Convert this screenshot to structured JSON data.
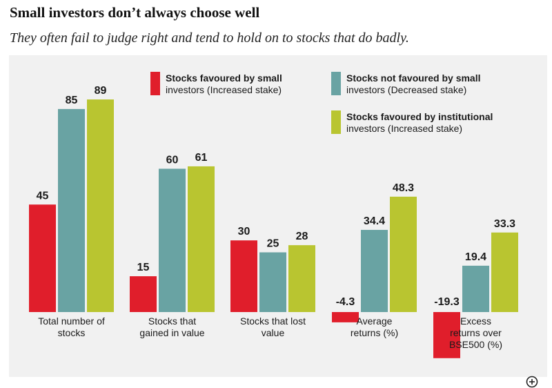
{
  "title": "Small investors don’t always choose well",
  "subtitle": "They often fail to judge right and tend to hold on to stocks that do badly.",
  "colors": {
    "small_investors": "#e01e2b",
    "not_favoured": "#69a3a3",
    "institutional": "#b9c530",
    "background": "#f1f1f1"
  },
  "chart_data": {
    "type": "bar",
    "title": "Small investors don’t always choose well",
    "categories": [
      [
        "Total number of",
        "stocks"
      ],
      [
        "Stocks that",
        "gained in value"
      ],
      [
        "Stocks that lost",
        "value"
      ],
      [
        "Average",
        "returns (%)"
      ],
      [
        "Excess",
        "returns over",
        "BSE500 (%)"
      ]
    ],
    "series": [
      {
        "name": "Stocks favoured by small investors (Increased stake)",
        "legend_lines": [
          "Stocks favoured by small",
          "investors (Increased stake)"
        ],
        "values": [
          45,
          15,
          30,
          -4.3,
          -19.3
        ]
      },
      {
        "name": "Stocks not favoured by small investors (Decreased stake)",
        "legend_lines": [
          "Stocks not favoured by small",
          "investors (Decreased stake)"
        ],
        "values": [
          85,
          60,
          25,
          34.4,
          19.4
        ]
      },
      {
        "name": "Stocks favoured by institutional investors (Increased stake)",
        "legend_lines": [
          "Stocks favoured by institutional",
          "investors (Increased stake)"
        ],
        "values": [
          89,
          61,
          28,
          48.3,
          33.3
        ]
      }
    ],
    "legend_position": "top-right",
    "grid": false
  }
}
